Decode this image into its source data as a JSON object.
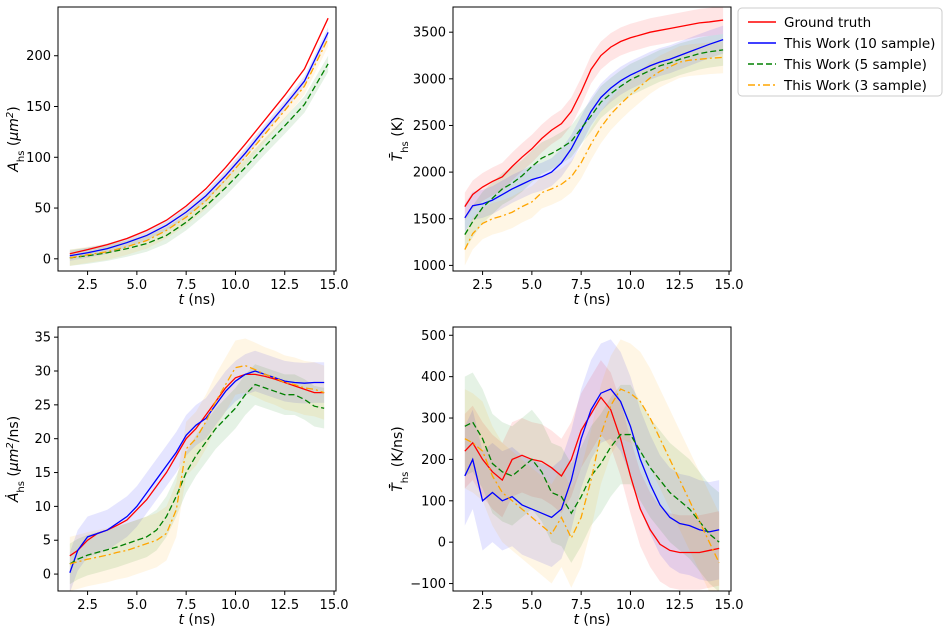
{
  "legend": {
    "placement": "top-right",
    "entries": [
      {
        "name": "Ground truth",
        "color": "#ff0000",
        "dash": "solid"
      },
      {
        "name": "This Work (10 sample)",
        "color": "#0000ff",
        "dash": "solid"
      },
      {
        "name": "This Work (5 sample)",
        "color": "#008000",
        "dash": "dashed"
      },
      {
        "name": "This Work (3 sample)",
        "color": "#ffa500",
        "dash": "dashdot"
      }
    ]
  },
  "chart_data": [
    {
      "type": "line",
      "title": "",
      "xlabel": "t (ns)",
      "ylabel": "A_hs (μm²)",
      "xlim": [
        1.0,
        15.1
      ],
      "ylim": [
        -12,
        248
      ],
      "xticks": [
        "2.5",
        "5.0",
        "7.5",
        "10.0",
        "12.5",
        "15.0"
      ],
      "yticks": [
        "0",
        "50",
        "100",
        "150",
        "200"
      ],
      "x": [
        1.6,
        2.5,
        3.5,
        4.5,
        5.5,
        6.5,
        7.5,
        8.5,
        9.5,
        10.5,
        11.5,
        12.5,
        13.5,
        14.7
      ],
      "series": [
        {
          "name": "Ground truth",
          "values": [
            5,
            9,
            14,
            20,
            28,
            38,
            52,
            69,
            90,
            113,
            137,
            161,
            187,
            237
          ],
          "band": 0
        },
        {
          "name": "This Work (10 sample)",
          "values": [
            3,
            6,
            10,
            16,
            23,
            33,
            46,
            62,
            82,
            104,
            128,
            151,
            175,
            223
          ],
          "band": 5
        },
        {
          "name": "This Work (5 sample)",
          "values": [
            1,
            3,
            6,
            10,
            15,
            23,
            36,
            52,
            70,
            90,
            111,
            131,
            152,
            192
          ],
          "band": 8
        },
        {
          "name": "This Work (3 sample)",
          "values": [
            1,
            4,
            7,
            12,
            18,
            28,
            41,
            57,
            78,
            100,
            123,
            146,
            170,
            217
          ],
          "band": 8
        }
      ]
    },
    {
      "type": "line",
      "title": "",
      "xlabel": "t (ns)",
      "ylabel": "T̄_hs (K)",
      "xlim": [
        1.0,
        15.1
      ],
      "ylim": [
        940,
        3770
      ],
      "xticks": [
        "2.5",
        "5.0",
        "7.5",
        "10.0",
        "12.5",
        "15.0"
      ],
      "yticks": [
        "1000",
        "1500",
        "2000",
        "2500",
        "3000",
        "3500"
      ],
      "x": [
        1.6,
        2.0,
        2.5,
        3.0,
        3.5,
        4.0,
        4.5,
        5.0,
        5.5,
        6.0,
        6.5,
        7.0,
        7.5,
        8.0,
        8.5,
        9.0,
        9.5,
        10.0,
        10.5,
        11.0,
        11.5,
        12.0,
        12.5,
        13.0,
        13.5,
        14.0,
        14.7
      ],
      "series": [
        {
          "name": "Ground truth",
          "values": [
            1630,
            1760,
            1840,
            1900,
            1950,
            2060,
            2160,
            2250,
            2360,
            2450,
            2520,
            2650,
            2860,
            3100,
            3250,
            3340,
            3400,
            3440,
            3470,
            3500,
            3520,
            3540,
            3560,
            3580,
            3600,
            3610,
            3630
          ],
          "band": 150
        },
        {
          "name": "This Work (10 sample)",
          "values": [
            1510,
            1640,
            1660,
            1700,
            1760,
            1820,
            1870,
            1920,
            1950,
            2000,
            2100,
            2250,
            2450,
            2650,
            2800,
            2900,
            2980,
            3040,
            3090,
            3140,
            3180,
            3210,
            3250,
            3290,
            3330,
            3370,
            3420
          ],
          "band": 150
        },
        {
          "name": "This Work (5 sample)",
          "values": [
            1330,
            1470,
            1620,
            1720,
            1820,
            1880,
            1960,
            2060,
            2150,
            2200,
            2260,
            2330,
            2470,
            2600,
            2750,
            2840,
            2920,
            2990,
            3040,
            3090,
            3140,
            3170,
            3210,
            3240,
            3270,
            3290,
            3310
          ],
          "band": 170
        },
        {
          "name": "This Work (3 sample)",
          "values": [
            1170,
            1340,
            1450,
            1500,
            1530,
            1570,
            1630,
            1680,
            1780,
            1820,
            1870,
            1950,
            2100,
            2300,
            2480,
            2620,
            2730,
            2830,
            2920,
            3010,
            3080,
            3130,
            3180,
            3200,
            3210,
            3220,
            3230
          ],
          "band": 170
        }
      ]
    },
    {
      "type": "line",
      "title": "",
      "xlabel": "t (ns)",
      "ylabel": "Ȧ_hs (μm²/ns)",
      "xlim": [
        1.0,
        15.1
      ],
      "ylim": [
        -2.5,
        36.5
      ],
      "xticks": [
        "2.5",
        "5.0",
        "7.5",
        "10.0",
        "12.5",
        "15.0"
      ],
      "yticks": [
        "0",
        "5",
        "10",
        "15",
        "20",
        "25",
        "30",
        "35"
      ],
      "x": [
        1.6,
        2.0,
        2.5,
        3.0,
        3.5,
        4.0,
        4.5,
        5.0,
        5.5,
        6.0,
        6.5,
        7.0,
        7.5,
        8.0,
        8.5,
        9.0,
        9.5,
        10.0,
        10.5,
        11.0,
        11.5,
        12.0,
        12.5,
        13.0,
        13.5,
        14.0,
        14.5
      ],
      "series": [
        {
          "name": "Ground truth",
          "values": [
            2.7,
            3.5,
            5.0,
            6.0,
            6.5,
            7.2,
            8.0,
            9.5,
            11.0,
            13.0,
            15.0,
            17.5,
            20.0,
            21.5,
            23.5,
            25.5,
            27.5,
            29.0,
            29.5,
            29.5,
            29.2,
            28.8,
            28.3,
            27.8,
            27.3,
            26.8,
            26.8
          ],
          "band": 0
        },
        {
          "name": "This Work (10 sample)",
          "values": [
            0.2,
            3.5,
            5.5,
            6.0,
            6.5,
            7.5,
            8.5,
            10.0,
            12.0,
            14.0,
            16.0,
            18.0,
            20.5,
            22.0,
            23.0,
            25.0,
            27.0,
            28.5,
            29.5,
            30.0,
            29.5,
            29.0,
            28.5,
            28.3,
            28.2,
            28.3,
            28.3
          ],
          "band": 3
        },
        {
          "name": "This Work (5 sample)",
          "values": [
            1.5,
            2.2,
            2.8,
            3.2,
            3.6,
            4.0,
            4.5,
            5.0,
            5.5,
            6.5,
            8.5,
            11.5,
            15.0,
            17.5,
            19.5,
            21.5,
            23.0,
            24.5,
            26.5,
            28.0,
            27.5,
            27.0,
            26.5,
            26.5,
            25.8,
            24.8,
            24.5
          ],
          "band": 3
        },
        {
          "name": "This Work (3 sample)",
          "values": [
            1.5,
            1.8,
            2.2,
            2.5,
            2.8,
            3.2,
            3.5,
            4.0,
            4.5,
            5.0,
            6.0,
            9.5,
            18.5,
            20.0,
            22.5,
            25.5,
            28.0,
            30.5,
            30.8,
            30.2,
            29.5,
            29.0,
            28.3,
            28.0,
            27.5,
            27.3,
            26.8
          ],
          "band": 4
        }
      ]
    },
    {
      "type": "line",
      "title": "",
      "xlabel": "t (ns)",
      "ylabel": "T̄̇_hs (K/ns)",
      "xlim": [
        1.0,
        15.1
      ],
      "ylim": [
        -118,
        520
      ],
      "xticks": [
        "2.5",
        "5.0",
        "7.5",
        "10.0",
        "12.5",
        "15.0"
      ],
      "yticks": [
        "−100",
        "0",
        "100",
        "200",
        "300",
        "400",
        "500"
      ],
      "x": [
        1.6,
        2.0,
        2.5,
        3.0,
        3.5,
        4.0,
        4.5,
        5.0,
        5.5,
        6.0,
        6.5,
        7.0,
        7.5,
        8.0,
        8.5,
        9.0,
        9.5,
        10.0,
        10.5,
        11.0,
        11.5,
        12.0,
        12.5,
        13.0,
        13.5,
        14.0,
        14.5
      ],
      "series": [
        {
          "name": "Ground truth",
          "values": [
            220,
            240,
            200,
            170,
            150,
            200,
            210,
            200,
            195,
            180,
            160,
            200,
            270,
            310,
            350,
            320,
            250,
            160,
            80,
            30,
            -5,
            -20,
            -25,
            -25,
            -25,
            -20,
            -15
          ],
          "band": 90
        },
        {
          "name": "This Work (10 sample)",
          "values": [
            160,
            200,
            100,
            120,
            100,
            110,
            90,
            80,
            70,
            60,
            80,
            150,
            250,
            320,
            360,
            370,
            340,
            280,
            200,
            140,
            90,
            60,
            45,
            40,
            30,
            25,
            30
          ],
          "band": 120
        },
        {
          "name": "This Work (5 sample)",
          "values": [
            280,
            290,
            250,
            190,
            170,
            160,
            180,
            200,
            170,
            120,
            110,
            70,
            110,
            160,
            190,
            230,
            260,
            260,
            220,
            180,
            150,
            120,
            100,
            80,
            50,
            20,
            0
          ],
          "band": 120
        },
        {
          "name": "This Work (3 sample)",
          "values": [
            250,
            240,
            220,
            160,
            120,
            100,
            80,
            60,
            40,
            20,
            60,
            10,
            60,
            150,
            260,
            330,
            370,
            360,
            340,
            300,
            250,
            200,
            150,
            100,
            50,
            0,
            -50
          ],
          "band": 120
        }
      ]
    }
  ]
}
